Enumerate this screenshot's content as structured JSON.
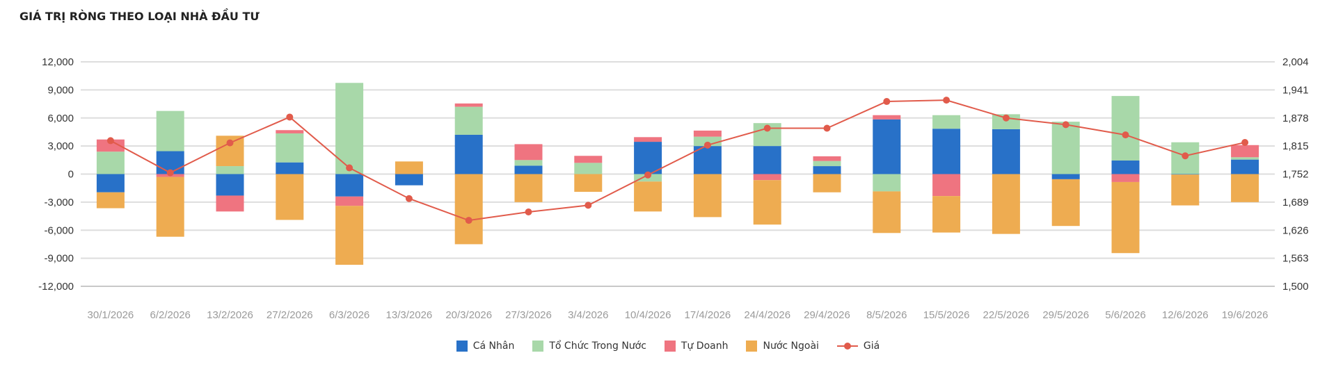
{
  "header": {
    "title": "GIÁ TRỊ RÒNG THEO LOẠI NHÀ ĐẦU TƯ"
  },
  "chart_data": {
    "type": "bar",
    "stacked": true,
    "categories": [
      "30/1/2026",
      "6/2/2026",
      "13/2/2026",
      "27/2/2026",
      "6/3/2026",
      "13/3/2026",
      "20/3/2026",
      "27/3/2026",
      "3/4/2026",
      "10/4/2026",
      "17/4/2026",
      "24/4/2026",
      "29/4/2026",
      "8/5/2026",
      "15/5/2026",
      "22/5/2026",
      "29/5/2026",
      "5/6/2026",
      "12/6/2026",
      "19/6/2026"
    ],
    "y_left": {
      "ticks": [
        12000,
        9000,
        6000,
        3000,
        0,
        -3000,
        -6000,
        -9000,
        -12000
      ],
      "tick_labels": [
        "12,000",
        "9,000",
        "6,000",
        "3,000",
        "0",
        "-3,000",
        "-6,000",
        "-9,000",
        "-12,000"
      ],
      "range": [
        -12000,
        12000
      ]
    },
    "y_right": {
      "ticks": [
        2004,
        1941,
        1878,
        1815,
        1752,
        1689,
        1626,
        1563,
        1500
      ],
      "tick_labels": [
        "2,004",
        "1,941",
        "1,878",
        "1,815",
        "1,752",
        "1,689",
        "1,626",
        "1,563",
        "1,500"
      ],
      "range": [
        1500,
        2004
      ]
    },
    "grid": true,
    "legend_position": "bottom",
    "series": [
      {
        "name": "Cá Nhân",
        "type": "bar",
        "axis": "left",
        "color": "#2871c8",
        "values": [
          -1950,
          2450,
          -2300,
          1250,
          -2400,
          -1200,
          4200,
          900,
          0,
          3450,
          3000,
          3000,
          850,
          5850,
          4850,
          4800,
          -550,
          1450,
          -50,
          1550
        ]
      },
      {
        "name": "Tổ Chức Trong Nước",
        "type": "bar",
        "axis": "left",
        "color": "#a8d8a9",
        "values": [
          2400,
          4300,
          850,
          3100,
          9750,
          0,
          3000,
          600,
          1200,
          -800,
          1000,
          2450,
          550,
          -1850,
          1450,
          1600,
          5600,
          6900,
          3400,
          250
        ]
      },
      {
        "name": "Tự Doanh",
        "type": "bar",
        "axis": "left",
        "color": "#ef7480",
        "values": [
          1300,
          -300,
          -1700,
          350,
          -1000,
          0,
          350,
          1700,
          750,
          500,
          650,
          -650,
          500,
          450,
          -2350,
          0,
          0,
          -850,
          0,
          1300
        ]
      },
      {
        "name": "Nước Ngoài",
        "type": "bar",
        "axis": "left",
        "color": "#eeac51",
        "values": [
          -1700,
          -6400,
          3250,
          -4900,
          -6300,
          1350,
          -7500,
          -3000,
          -1900,
          -3200,
          -4600,
          -4750,
          -1950,
          -4450,
          -3900,
          -6400,
          -5000,
          -7600,
          -3300,
          -3000
        ]
      },
      {
        "name": "Giá",
        "type": "line",
        "axis": "right",
        "color": "#e15b4b",
        "values": [
          1827,
          1755,
          1822,
          1880,
          1766,
          1697,
          1648,
          1667,
          1682,
          1750,
          1817,
          1855,
          1855,
          1915,
          1918,
          1878,
          1863,
          1840,
          1793,
          1823
        ]
      }
    ]
  }
}
